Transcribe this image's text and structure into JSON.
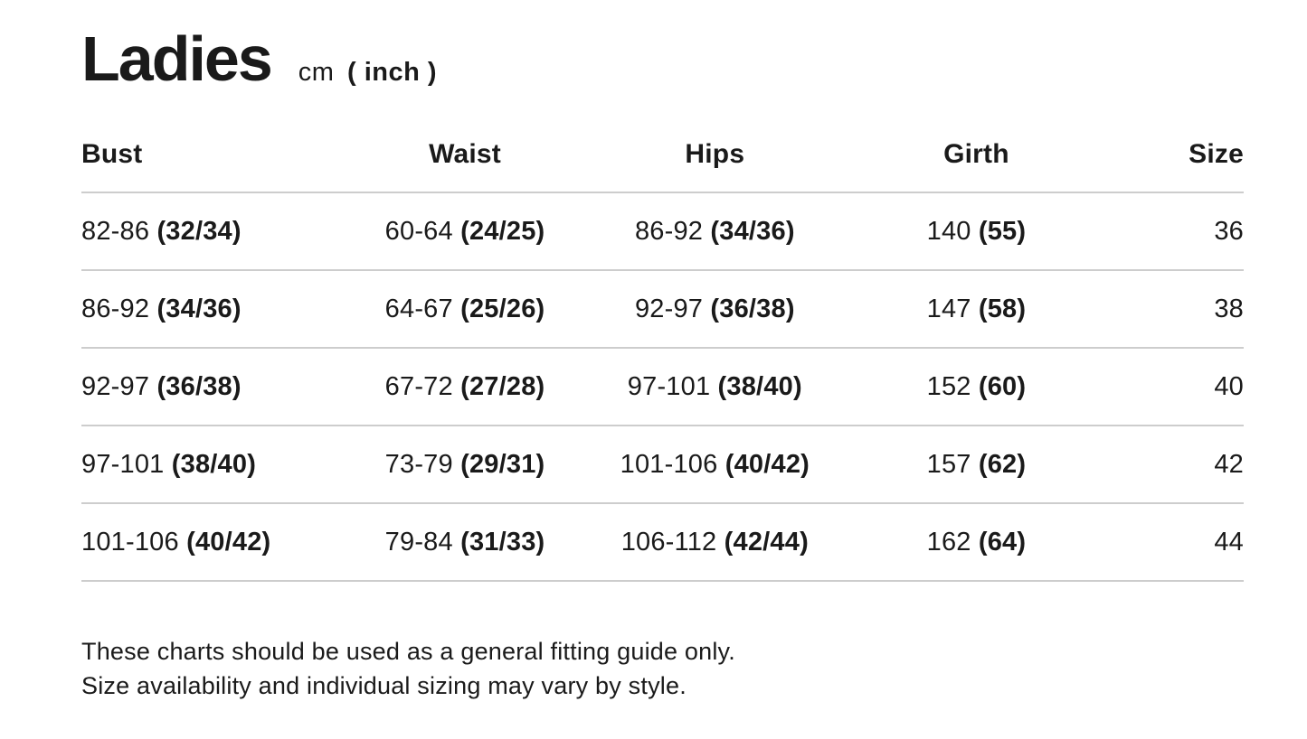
{
  "header": {
    "title": "Ladies",
    "unit_cm": "cm",
    "unit_inch": "( inch )"
  },
  "table": {
    "columns": [
      "Bust",
      "Waist",
      "Hips",
      "Girth",
      "Size"
    ],
    "rows": [
      {
        "bust": {
          "cm": "82-86",
          "inch": "(32/34)"
        },
        "waist": {
          "cm": "60-64",
          "inch": "(24/25)"
        },
        "hips": {
          "cm": "86-92",
          "inch": "(34/36)"
        },
        "girth": {
          "cm": "140",
          "inch": "(55)"
        },
        "size": "36"
      },
      {
        "bust": {
          "cm": "86-92",
          "inch": "(34/36)"
        },
        "waist": {
          "cm": "64-67",
          "inch": "(25/26)"
        },
        "hips": {
          "cm": "92-97",
          "inch": "(36/38)"
        },
        "girth": {
          "cm": "147",
          "inch": "(58)"
        },
        "size": "38"
      },
      {
        "bust": {
          "cm": "92-97",
          "inch": "(36/38)"
        },
        "waist": {
          "cm": "67-72",
          "inch": "(27/28)"
        },
        "hips": {
          "cm": "97-101",
          "inch": "(38/40)"
        },
        "girth": {
          "cm": "152",
          "inch": "(60)"
        },
        "size": "40"
      },
      {
        "bust": {
          "cm": "97-101",
          "inch": "(38/40)"
        },
        "waist": {
          "cm": "73-79",
          "inch": "(29/31)"
        },
        "hips": {
          "cm": "101-106",
          "inch": "(40/42)"
        },
        "girth": {
          "cm": "157",
          "inch": "(62)"
        },
        "size": "42"
      },
      {
        "bust": {
          "cm": "101-106",
          "inch": "(40/42)"
        },
        "waist": {
          "cm": "79-84",
          "inch": "(31/33)"
        },
        "hips": {
          "cm": "106-112",
          "inch": "(42/44)"
        },
        "girth": {
          "cm": "162",
          "inch": "(64)"
        },
        "size": "44"
      }
    ]
  },
  "footer": {
    "line1": "These charts should be used as a general fitting guide only.",
    "line2": "Size availability and individual sizing may vary by style."
  },
  "colors": {
    "text": "#1a1a1a",
    "divider": "#cdcdcd",
    "background": "#ffffff"
  }
}
